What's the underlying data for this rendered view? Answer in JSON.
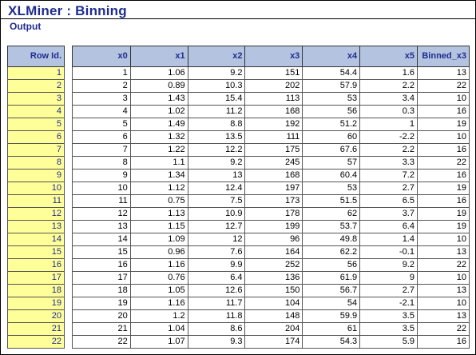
{
  "window": {
    "title": "XLMiner : Binning",
    "subtitle": "Output"
  },
  "row_id_table": {
    "header": "Row Id.",
    "ids": [
      "1",
      "2",
      "3",
      "4",
      "5",
      "6",
      "7",
      "8",
      "9",
      "10",
      "11",
      "12",
      "13",
      "14",
      "15",
      "16",
      "17",
      "18",
      "19",
      "20",
      "21",
      "22"
    ]
  },
  "data_table": {
    "headers": [
      "x0",
      "x1",
      "x2",
      "x3",
      "x4",
      "x5",
      "Binned_x3"
    ],
    "rows": [
      [
        "1",
        "1.06",
        "9.2",
        "151",
        "54.4",
        "1.6",
        "13"
      ],
      [
        "2",
        "0.89",
        "10.3",
        "202",
        "57.9",
        "2.2",
        "22"
      ],
      [
        "3",
        "1.43",
        "15.4",
        "113",
        "53",
        "3.4",
        "10"
      ],
      [
        "4",
        "1.02",
        "11.2",
        "168",
        "56",
        "0.3",
        "16"
      ],
      [
        "5",
        "1.49",
        "8.8",
        "192",
        "51.2",
        "1",
        "19"
      ],
      [
        "6",
        "1.32",
        "13.5",
        "111",
        "60",
        "-2.2",
        "10"
      ],
      [
        "7",
        "1.22",
        "12.2",
        "175",
        "67.6",
        "2.2",
        "16"
      ],
      [
        "8",
        "1.1",
        "9.2",
        "245",
        "57",
        "3.3",
        "22"
      ],
      [
        "9",
        "1.34",
        "13",
        "168",
        "60.4",
        "7.2",
        "16"
      ],
      [
        "10",
        "1.12",
        "12.4",
        "197",
        "53",
        "2.7",
        "19"
      ],
      [
        "11",
        "0.75",
        "7.5",
        "173",
        "51.5",
        "6.5",
        "16"
      ],
      [
        "12",
        "1.13",
        "10.9",
        "178",
        "62",
        "3.7",
        "19"
      ],
      [
        "13",
        "1.15",
        "12.7",
        "199",
        "53.7",
        "6.4",
        "19"
      ],
      [
        "14",
        "1.09",
        "12",
        "96",
        "49.8",
        "1.4",
        "10"
      ],
      [
        "15",
        "0.96",
        "7.6",
        "164",
        "62.2",
        "-0.1",
        "13"
      ],
      [
        "16",
        "1.16",
        "9.9",
        "252",
        "56",
        "9.2",
        "22"
      ],
      [
        "17",
        "0.76",
        "6.4",
        "136",
        "61.9",
        "9",
        "10"
      ],
      [
        "18",
        "1.05",
        "12.6",
        "150",
        "56.7",
        "2.7",
        "13"
      ],
      [
        "19",
        "1.16",
        "11.7",
        "104",
        "54",
        "-2.1",
        "10"
      ],
      [
        "20",
        "1.2",
        "11.8",
        "148",
        "59.9",
        "3.5",
        "13"
      ],
      [
        "21",
        "1.04",
        "8.6",
        "204",
        "61",
        "3.5",
        "22"
      ],
      [
        "22",
        "1.07",
        "9.3",
        "174",
        "54.3",
        "5.9",
        "16"
      ]
    ]
  }
}
